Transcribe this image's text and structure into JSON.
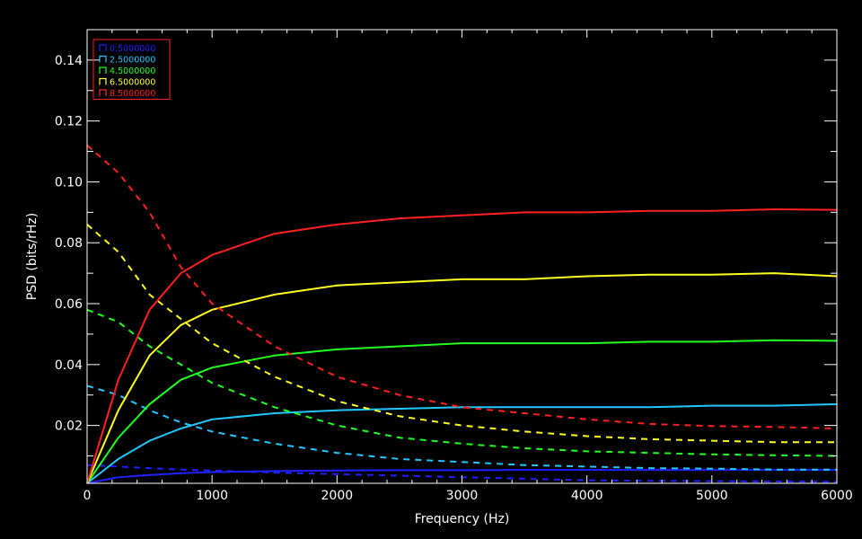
{
  "chart_data": {
    "type": "line",
    "xlabel": "Frequency (Hz)",
    "ylabel": "PSD (bits/rHz)",
    "xlim": [
      0,
      6000
    ],
    "ylim": [
      0.001,
      0.15
    ],
    "x_ticks": [
      0,
      1000,
      2000,
      3000,
      4000,
      5000,
      6000
    ],
    "x_tick_labels": [
      "0",
      "1000",
      "2000",
      "3000",
      "4000",
      "5000",
      "6000"
    ],
    "y_ticks": [
      0.02,
      0.04,
      0.06,
      0.08,
      0.1,
      0.12,
      0.14
    ],
    "y_tick_labels": [
      "0.02",
      "0.04",
      "0.06",
      "0.08",
      "0.10",
      "0.12",
      "0.14"
    ],
    "grid": false,
    "legend_position": "top-left",
    "legend_box_color": "#ff2020",
    "background": "#000000",
    "axis_color": "#ffffff",
    "x": [
      0,
      250,
      500,
      750,
      1000,
      1500,
      2000,
      2500,
      3000,
      3500,
      4000,
      4500,
      5000,
      5500,
      6000
    ],
    "series": [
      {
        "name": "0.5000000",
        "color": "#2020ff",
        "solid": [
          0.001,
          0.003,
          0.0037,
          0.0043,
          0.0047,
          0.005,
          0.0052,
          0.0053,
          0.0053,
          0.0054,
          0.0054,
          0.0054,
          0.0054,
          0.0054,
          0.0054
        ],
        "dashed": [
          0.007,
          0.0065,
          0.006,
          0.0055,
          0.0052,
          0.0045,
          0.004,
          0.0035,
          0.003,
          0.0025,
          0.002,
          0.0018,
          0.0017,
          0.0016,
          0.0015
        ]
      },
      {
        "name": "2.5000000",
        "color": "#20c8ff",
        "solid": [
          0.001,
          0.009,
          0.015,
          0.019,
          0.022,
          0.024,
          0.025,
          0.0255,
          0.026,
          0.026,
          0.026,
          0.026,
          0.0265,
          0.0265,
          0.027
        ],
        "dashed": [
          0.033,
          0.03,
          0.025,
          0.021,
          0.018,
          0.014,
          0.011,
          0.009,
          0.008,
          0.007,
          0.0065,
          0.006,
          0.0058,
          0.0055,
          0.0055
        ]
      },
      {
        "name": "4.5000000",
        "color": "#20ff20",
        "solid": [
          0.001,
          0.016,
          0.027,
          0.035,
          0.039,
          0.043,
          0.045,
          0.046,
          0.047,
          0.047,
          0.047,
          0.0475,
          0.0475,
          0.048,
          0.0478
        ],
        "dashed": [
          0.058,
          0.054,
          0.046,
          0.04,
          0.034,
          0.026,
          0.02,
          0.016,
          0.014,
          0.0125,
          0.0115,
          0.011,
          0.0105,
          0.0102,
          0.01
        ]
      },
      {
        "name": "6.5000000",
        "color": "#ffff20",
        "solid": [
          0.001,
          0.025,
          0.043,
          0.053,
          0.058,
          0.063,
          0.066,
          0.067,
          0.068,
          0.068,
          0.069,
          0.0695,
          0.0695,
          0.07,
          0.069
        ],
        "dashed": [
          0.086,
          0.077,
          0.063,
          0.055,
          0.047,
          0.036,
          0.028,
          0.023,
          0.02,
          0.018,
          0.0165,
          0.0155,
          0.015,
          0.0145,
          0.0145
        ]
      },
      {
        "name": "8.5000000",
        "color": "#ff2020",
        "solid": [
          0.001,
          0.035,
          0.058,
          0.07,
          0.076,
          0.083,
          0.086,
          0.088,
          0.089,
          0.09,
          0.09,
          0.0905,
          0.0905,
          0.091,
          0.0908
        ],
        "dashed": [
          0.112,
          0.103,
          0.09,
          0.072,
          0.06,
          0.046,
          0.036,
          0.03,
          0.026,
          0.024,
          0.022,
          0.0205,
          0.0198,
          0.0195,
          0.019
        ]
      }
    ]
  }
}
